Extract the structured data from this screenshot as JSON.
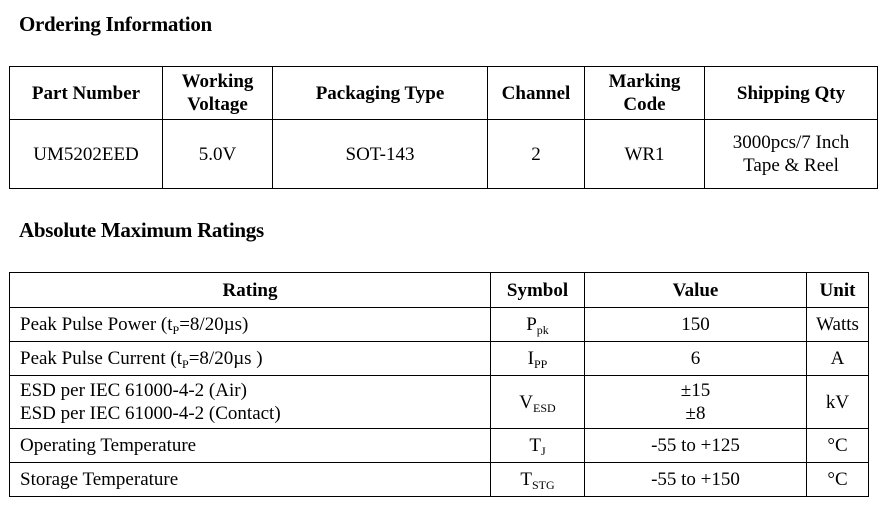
{
  "ordering": {
    "title": "Ordering Information",
    "headers": [
      "Part Number",
      {
        "lines": [
          "Working",
          "Voltage"
        ]
      },
      "Packaging Type",
      "Channel",
      {
        "lines": [
          "Marking",
          "Code"
        ]
      },
      "Shipping Qty"
    ],
    "rows": [
      [
        "UM5202EED",
        "5.0V",
        "SOT-143",
        "2",
        "WR1",
        {
          "lines": [
            "3000pcs/7 Inch",
            "Tape & Reel"
          ]
        }
      ]
    ]
  },
  "ratings": {
    "title": "Absolute Maximum Ratings",
    "headers": [
      "Rating",
      "Symbol",
      "Value",
      "Unit"
    ],
    "rows": [
      [
        {
          "parts": [
            "Peak Pulse Power (t",
            {
              "sub": "P"
            },
            "=8/20µs)"
          ]
        },
        {
          "parts": [
            "P",
            {
              "sub": "pk"
            }
          ]
        },
        "150",
        "Watts"
      ],
      [
        {
          "parts": [
            "Peak Pulse Current (t",
            {
              "sub": "P"
            },
            "=8/20µs )"
          ]
        },
        {
          "parts": [
            "I",
            {
              "sub": "PP"
            }
          ]
        },
        "6",
        "A"
      ],
      [
        {
          "lines": [
            "ESD per IEC 61000-4-2 (Air)",
            "ESD per IEC 61000-4-2 (Contact)"
          ]
        },
        {
          "parts": [
            "V",
            {
              "sub": "ESD"
            }
          ]
        },
        {
          "lines": [
            "±15",
            "±8"
          ]
        },
        "kV"
      ],
      [
        "Operating Temperature",
        {
          "parts": [
            "T",
            {
              "sub": "J"
            }
          ]
        },
        "-55 to +125",
        "°C"
      ],
      [
        "Storage Temperature",
        {
          "parts": [
            "T",
            {
              "sub": "STG"
            }
          ]
        },
        "-55 to +150",
        "°C"
      ]
    ]
  }
}
